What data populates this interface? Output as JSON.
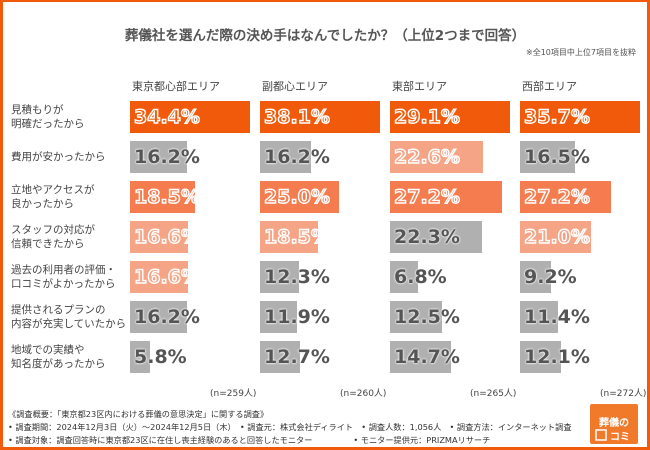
{
  "chart_data": {
    "type": "bar",
    "title": "葬儀社を選んだ際の決め手はなんでしたか？（上位2つまで回答）",
    "note": "※全10項目中上位7項目を抜粋",
    "categories": [
      "見積もりが\n明確だったから",
      "費用が安かったから",
      "立地やアクセスが\n良かったから",
      "スタッフの対応が\n信頼できたから",
      "過去の利用者の評価・\n口コミがよかったから",
      "提供されるプランの\n内容が充実していたから",
      "地域での実績や\n知名度があったから"
    ],
    "series": [
      {
        "name": "東京都心部エリア",
        "n": "(n=259人)",
        "values": [
          34.4,
          16.2,
          18.5,
          16.6,
          16.6,
          16.2,
          5.8
        ],
        "labels": [
          "34.4%",
          "16.2%",
          "18.5%",
          "16.6%",
          "16.6%",
          "16.2%",
          "5.8%"
        ]
      },
      {
        "name": "副都心エリア",
        "n": "(n=260人)",
        "values": [
          38.1,
          16.2,
          25.0,
          18.5,
          12.3,
          11.9,
          12.7
        ],
        "labels": [
          "38.1%",
          "16.2%",
          "25.0%",
          "18.5%",
          "12.3%",
          "11.9%",
          "12.7%"
        ]
      },
      {
        "name": "東部エリア",
        "n": "(n=265人)",
        "values": [
          29.1,
          22.6,
          27.2,
          22.3,
          6.8,
          12.5,
          14.7
        ],
        "labels": [
          "29.1%",
          "22.6%",
          "27.2%",
          "22.3%",
          "6.8%",
          "12.5%",
          "14.7%"
        ]
      },
      {
        "name": "西部エリア",
        "n": "(n=272人)",
        "values": [
          35.7,
          16.5,
          27.2,
          21.0,
          9.2,
          11.4,
          12.1
        ],
        "labels": [
          "35.7%",
          "16.5%",
          "27.2%",
          "21.0%",
          "9.2%",
          "11.4%",
          "12.1%"
        ]
      }
    ],
    "rank_colors": [
      "#f05a0a",
      "#f47c4e",
      "#f5a486"
    ],
    "other_color": "#b0b0b0",
    "unit": "%"
  },
  "footer": {
    "line1": "《調査概要：「東京都23区内における葬儀の意思決定」に関する調査》",
    "line2": "• 調査期間：2024年12月3日（火）～2024年12月5日（木）　• 調査元：株式会社ディライト　• 調査人数：1,056人　• 調査方法：インターネット調査",
    "line3": "• 調査対象：調査回答時に東京都23区に在住し喪主経験のあると回答したモニター　　　　　• モニター提供元：PRIZMAリサーチ"
  },
  "logo": {
    "text1": "葬儀の",
    "text2": "コミ"
  },
  "brand_color": "#f05a0a"
}
